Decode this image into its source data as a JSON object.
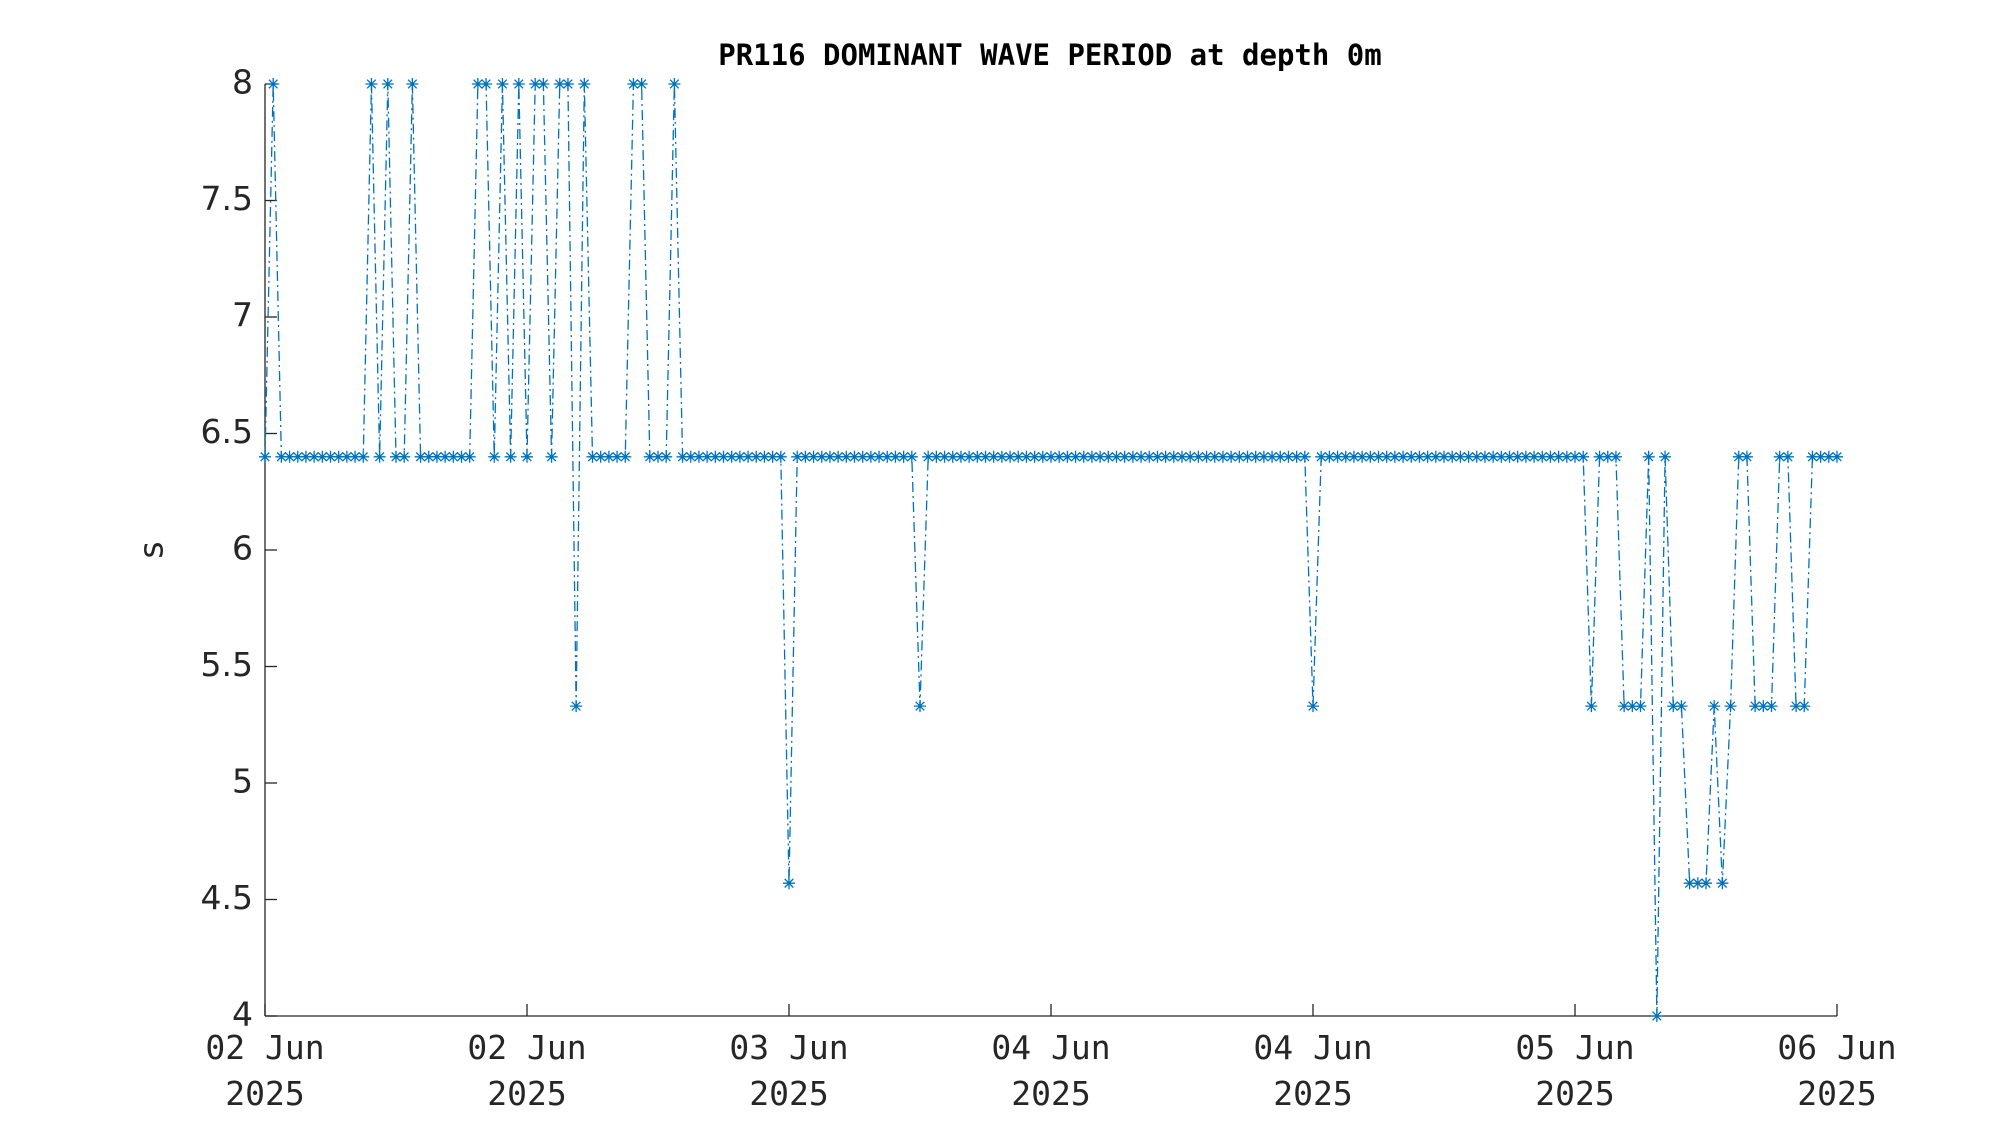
{
  "chart_data": {
    "type": "line",
    "title": "PR116 DOMINANT WAVE PERIOD at depth 0m",
    "y_label": "s",
    "x": [
      0,
      0.5,
      1,
      1.5,
      2,
      2.5,
      3,
      3.5,
      4,
      4.5,
      5,
      5.5,
      6,
      6.5,
      7,
      7.5,
      8,
      8.5,
      9,
      9.5,
      10,
      10.5,
      11,
      11.5,
      12,
      12.5,
      13,
      13.5,
      14,
      14.5,
      15,
      15.5,
      16,
      16.5,
      17,
      17.5,
      18,
      18.5,
      19,
      19.5,
      20,
      20.5,
      21,
      21.5,
      22,
      22.5,
      23,
      23.5,
      24,
      24.5,
      25,
      25.5,
      26,
      26.5,
      27,
      27.5,
      28,
      28.5,
      29,
      29.5,
      30,
      30.5,
      31,
      31.5,
      32,
      32.5,
      33,
      33.5,
      34,
      34.5,
      35,
      35.5,
      36,
      36.5,
      37,
      37.5,
      38,
      38.5,
      39,
      39.5,
      40,
      40.5,
      41,
      41.5,
      42,
      42.5,
      43,
      43.5,
      44,
      44.5,
      45,
      45.5,
      46,
      46.5,
      47,
      47.5,
      48,
      48.5,
      49,
      49.5,
      50,
      50.5,
      51,
      51.5,
      52,
      52.5,
      53,
      53.5,
      54,
      54.5,
      55,
      55.5,
      56,
      56.5,
      57,
      57.5,
      58,
      58.5,
      59,
      59.5,
      60,
      60.5,
      61,
      61.5,
      62,
      62.5,
      63,
      63.5,
      64,
      64.5,
      65,
      65.5,
      66,
      66.5,
      67,
      67.5,
      68,
      68.5,
      69,
      69.5,
      70,
      70.5,
      71,
      71.5,
      72,
      72.5,
      73,
      73.5,
      74,
      74.5,
      75,
      75.5,
      76,
      76.5,
      77,
      77.5,
      78,
      78.5,
      79,
      79.5,
      80,
      80.5,
      81,
      81.5,
      82,
      82.5,
      83,
      83.5,
      84,
      84.5,
      85,
      85.5,
      86,
      86.5,
      87,
      87.5,
      88,
      88.5,
      89,
      89.5,
      90,
      90.5,
      91,
      91.5,
      92,
      92.5,
      93,
      93.5,
      94,
      94.5,
      95,
      95.5,
      96
    ],
    "series": [
      {
        "color": "#0072BD",
        "values": [
          6.4,
          8,
          6.4,
          6.4,
          6.4,
          6.4,
          6.4,
          6.4,
          6.4,
          6.4,
          6.4,
          6.4,
          6.4,
          8,
          6.4,
          8,
          6.4,
          6.4,
          8,
          6.4,
          6.4,
          6.4,
          6.4,
          6.4,
          6.4,
          6.4,
          8,
          8,
          6.4,
          8,
          6.4,
          8,
          6.4,
          8,
          8,
          6.4,
          8,
          8,
          5.33,
          8,
          6.4,
          6.4,
          6.4,
          6.4,
          6.4,
          8,
          8,
          6.4,
          6.4,
          6.4,
          8,
          6.4,
          6.4,
          6.4,
          6.4,
          6.4,
          6.4,
          6.4,
          6.4,
          6.4,
          6.4,
          6.4,
          6.4,
          6.4,
          4.57,
          6.4,
          6.4,
          6.4,
          6.4,
          6.4,
          6.4,
          6.4,
          6.4,
          6.4,
          6.4,
          6.4,
          6.4,
          6.4,
          6.4,
          6.4,
          5.33,
          6.4,
          6.4,
          6.4,
          6.4,
          6.4,
          6.4,
          6.4,
          6.4,
          6.4,
          6.4,
          6.4,
          6.4,
          6.4,
          6.4,
          6.4,
          6.4,
          6.4,
          6.4,
          6.4,
          6.4,
          6.4,
          6.4,
          6.4,
          6.4,
          6.4,
          6.4,
          6.4,
          6.4,
          6.4,
          6.4,
          6.4,
          6.4,
          6.4,
          6.4,
          6.4,
          6.4,
          6.4,
          6.4,
          6.4,
          6.4,
          6.4,
          6.4,
          6.4,
          6.4,
          6.4,
          6.4,
          6.4,
          5.33,
          6.4,
          6.4,
          6.4,
          6.4,
          6.4,
          6.4,
          6.4,
          6.4,
          6.4,
          6.4,
          6.4,
          6.4,
          6.4,
          6.4,
          6.4,
          6.4,
          6.4,
          6.4,
          6.4,
          6.4,
          6.4,
          6.4,
          6.4,
          6.4,
          6.4,
          6.4,
          6.4,
          6.4,
          6.4,
          6.4,
          6.4,
          6.4,
          6.4,
          5.33,
          6.4,
          6.4,
          6.4,
          5.33,
          5.33,
          5.33,
          6.4,
          4,
          6.4,
          5.33,
          5.33,
          4.57,
          4.57,
          4.57,
          5.33,
          4.57,
          5.33,
          6.4,
          6.4,
          5.33,
          5.33,
          5.33,
          6.4,
          6.4,
          5.33,
          5.33,
          6.4,
          6.4,
          6.4,
          6.4
        ]
      }
    ],
    "xlim": [
      0,
      96
    ],
    "xticks": [
      {
        "value": 0,
        "label": "02 Jun\n2025"
      },
      {
        "value": 16,
        "label": "02 Jun\n2025"
      },
      {
        "value": 32,
        "label": "03 Jun\n2025"
      },
      {
        "value": 48,
        "label": "04 Jun\n2025"
      },
      {
        "value": 64,
        "label": "04 Jun\n2025"
      },
      {
        "value": 80,
        "label": "05 Jun\n2025"
      },
      {
        "value": 96,
        "label": "06 Jun\n2025"
      }
    ],
    "ylim": [
      4,
      8
    ],
    "yticks": [
      4,
      4.5,
      5,
      5.5,
      6,
      6.5,
      7,
      7.5,
      8
    ],
    "grid": false
  }
}
